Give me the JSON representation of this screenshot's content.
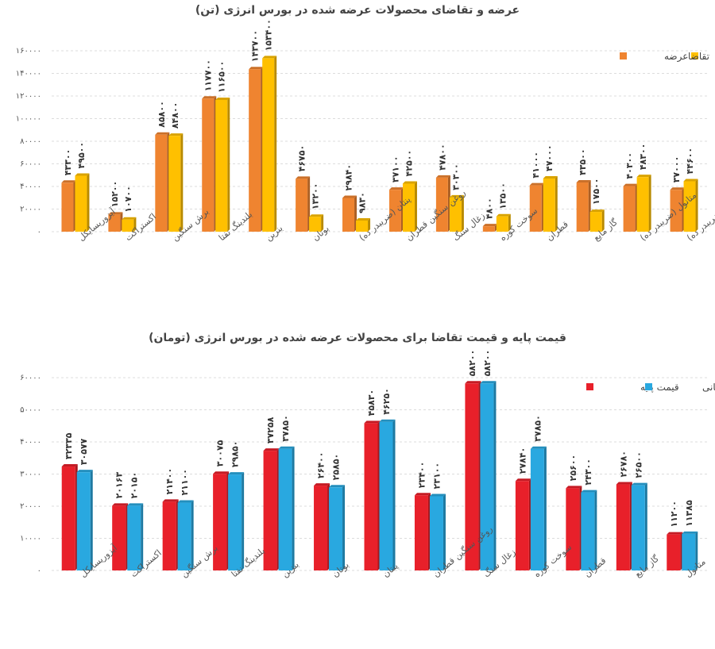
{
  "chart_data": [
    {
      "type": "bar",
      "title": "عرضه و تقاضای محصولات عرضه شده در بورس انرژی (تن)",
      "categories": [
        "آیزوریسایکل",
        "اکستراکت",
        "برش سنگین",
        "بلندینگ نفتا",
        "بنزین",
        "بوتان",
        "پنتان (ضریبدر ده)",
        "روغن سنگین قطران",
        "زغال سنگ",
        "سوخت کوره",
        "قطران",
        "گاز مایع",
        "متانول (ضریبدر ده)",
        "میعانات گازی (ضریبدر ده)"
      ],
      "series": [
        {
          "name": "عرضه",
          "color": "#ef8430",
          "values": [
            43300,
            15200,
            85800,
            117700,
            143700,
            46750,
            29840,
            37100,
            47800,
            4800,
            41000,
            43500,
            40300,
            37000
          ],
          "labels": [
            "۴۳۳۰۰",
            "۱۵۲۰۰",
            "۸۵۸۰۰",
            "۱۱۷۷۰۰",
            "۱۴۳۷۰۰",
            "۴۶۷۵۰",
            "۲۹۸۴۰",
            "۳۷۱۰۰",
            "۴۷۸۰۰",
            "۴۸۰۰",
            "۴۱۰۰۰",
            "۴۳۵۰۰",
            "۴۰۳۰۰",
            "۳۷۰۰۰"
          ]
        },
        {
          "name": "تقاضا",
          "color": "#ffc000",
          "values": [
            49500,
            10700,
            84800,
            116500,
            153400,
            13200,
            9830,
            42500,
            30300,
            13500,
            47000,
            17500,
            48300,
            44600
          ],
          "labels": [
            "۴۹۵۰۰",
            "۱۰۷۰۰",
            "۸۴۸۰۰",
            "۱۱۶۵۰۰",
            "۱۵۳۴۰۰",
            "۱۳۲۰۰",
            "۹۸۳۰",
            "۴۲۵۰۰",
            "۳۰۳۰۰",
            "۱۳۵۰۰",
            "۴۷۰۰۰",
            "۱۷۵۰۰",
            "۴۸۳۰۰",
            "۴۴۶۰۰"
          ]
        }
      ],
      "ylim": [
        0,
        160000
      ],
      "yticks": [
        0,
        20000,
        40000,
        60000,
        80000,
        100000,
        120000,
        140000,
        160000
      ],
      "ytick_labels": [
        "۰",
        "۲۰۰۰۰",
        "۴۰۰۰۰",
        "۶۰۰۰۰",
        "۸۰۰۰۰",
        "۱۰۰۰۰۰",
        "۱۲۰۰۰۰",
        "۱۴۰۰۰۰",
        "۱۶۰۰۰۰"
      ],
      "legend": "top-right"
    },
    {
      "type": "bar",
      "title": "قیمت پایه و قیمت تقاضا برای محصولات عرضه شده در بورس انرژی (تومان)",
      "categories": [
        "آیزوریسایکل",
        "اکستراکت",
        "برش سنگین",
        "بلندینگ نفتا",
        "بنزین",
        "بوتان",
        "پنتان",
        "روغن سنگین قطران",
        "زغال سنگ",
        "سوخت کوره",
        "قطران",
        "گاز مایع",
        "متانول"
      ],
      "series": [
        {
          "name": "قیمت پایه",
          "color": "#e8202a",
          "values": [
            32335,
            20163,
            21400,
            30075,
            37258,
            26400,
            45830,
            23400,
            58200,
            27840,
            25600,
            26780,
            11200
          ],
          "labels": [
            "۳۲۳۳۵",
            "۲۰۱۶۳",
            "۲۱۴۰۰",
            "۳۰۰۷۵",
            "۳۷۲۵۸",
            "۲۶۴۰۰",
            "۴۵۸۳۰",
            "۲۳۴۰۰",
            "۵۸۲۰۰",
            "۲۷۸۴۰",
            "۲۵۶۰۰",
            "۲۶۷۸۰",
            "۱۱۲۰۰"
          ]
        },
        {
          "name": "قیمت پایانی",
          "color": "#29a8e0",
          "values": [
            30577,
            20150,
            21100,
            29850,
            37850,
            25850,
            46250,
            23100,
            58200,
            37850,
            24300,
            26500,
            11385
          ],
          "labels": [
            "۳۰۵۷۷",
            "۲۰۱۵۰",
            "۲۱۱۰۰",
            "۲۹۸۵۰",
            "۳۷۸۵۰",
            "۲۵۸۵۰",
            "۴۶۲۵۰",
            "۲۳۱۰۰",
            "۵۸۲۰۰",
            "۳۷۸۵۰",
            "۲۴۳۰۰",
            "۲۶۵۰۰",
            "۱۱۳۸۵"
          ]
        }
      ],
      "ylim": [
        0,
        60000
      ],
      "yticks": [
        0,
        10000,
        20000,
        30000,
        40000,
        50000,
        60000
      ],
      "ytick_labels": [
        "۰",
        "۱۰۰۰۰",
        "۲۰۰۰۰",
        "۳۰۰۰۰",
        "۴۰۰۰۰",
        "۵۰۰۰۰",
        "۶۰۰۰۰"
      ],
      "legend": "top-right"
    }
  ]
}
